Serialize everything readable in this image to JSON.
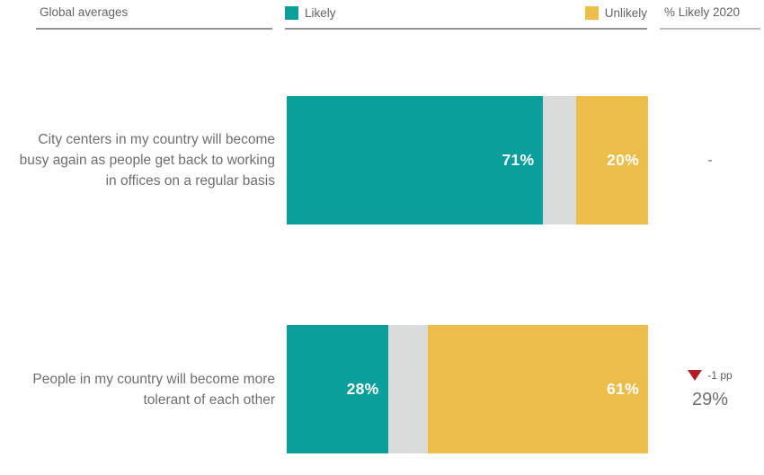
{
  "header": {
    "title": "Global averages",
    "right_column_header": "% Likely 2020"
  },
  "chart_data": {
    "type": "bar",
    "subtype": "horizontal-stacked",
    "title": "Global averages",
    "legend": [
      {
        "label": "Likely",
        "color": "#0a9e9c"
      },
      {
        "label": "Unlikely",
        "color": "#edbd4b"
      }
    ],
    "legend_position": "top",
    "right_column_header": "% Likely 2020",
    "colors": {
      "likely": "#0a9e9c",
      "unlikely": "#edbd4b",
      "neutral": "#d9dcda",
      "change_negative": "#b21f24"
    },
    "x_range": [
      0,
      100
    ],
    "rows": [
      {
        "label": "City centers in my country will become busy again as people get back to working in offices on a regular basis",
        "likely": 71,
        "neutral": 9,
        "unlikely": 20,
        "likely_label": "71%",
        "unlikely_label": "20%",
        "likely_2020": "-",
        "change": null
      },
      {
        "label": "People in my country will become more tolerant of each other",
        "likely": 28,
        "neutral": 11,
        "unlikely": 61,
        "likely_label": "28%",
        "unlikely_label": "61%",
        "likely_2020": "29%",
        "change": "-1 pp",
        "change_direction": "down"
      }
    ]
  }
}
